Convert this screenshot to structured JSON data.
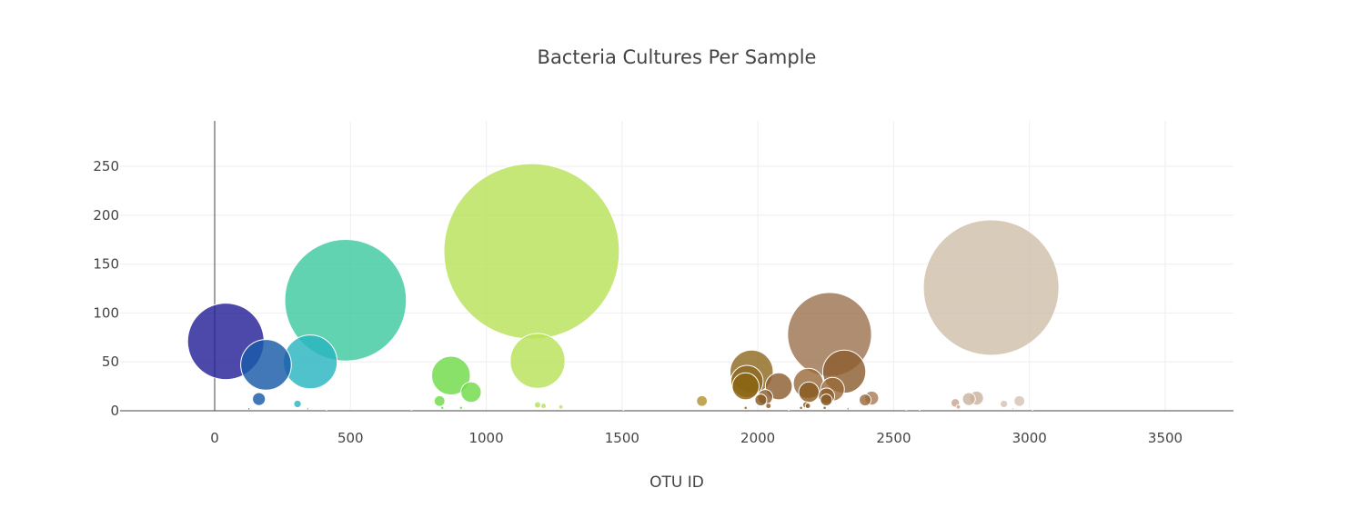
{
  "chart_data": {
    "type": "scatter",
    "title": "Bacteria Cultures Per Sample",
    "xlabel": "OTU ID",
    "ylabel": "",
    "xlim": [
      -350,
      3750
    ],
    "ylim": [
      -5,
      297
    ],
    "x_ticks": [
      0,
      500,
      1000,
      1500,
      2000,
      2500,
      3000,
      3500
    ],
    "y_ticks": [
      0,
      50,
      100,
      150,
      200,
      250
    ],
    "grid": true,
    "legend": "none",
    "points": [
      {
        "x": 1167,
        "y": 163,
        "size": 163,
        "color": "#b8e259"
      },
      {
        "x": 2859,
        "y": 126,
        "size": 126,
        "color": "#cfbfab"
      },
      {
        "x": 482,
        "y": 113,
        "size": 113,
        "color": "#3ec9a0"
      },
      {
        "x": 2264,
        "y": 78,
        "size": 78,
        "color": "#9e7452"
      },
      {
        "x": 41,
        "y": 71,
        "size": 71,
        "color": "#262199"
      },
      {
        "x": 1189,
        "y": 51,
        "size": 51,
        "color": "#b8e259"
      },
      {
        "x": 352,
        "y": 50,
        "size": 50,
        "color": "#29b5c0"
      },
      {
        "x": 189,
        "y": 47,
        "size": 47,
        "color": "#1a5aa8"
      },
      {
        "x": 1977,
        "y": 40,
        "size": 40,
        "color": "#8f6a22"
      },
      {
        "x": 2318,
        "y": 40,
        "size": 40,
        "color": "#8c5e30"
      },
      {
        "x": 870,
        "y": 36,
        "size": 36,
        "color": "#70db48"
      },
      {
        "x": 1960,
        "y": 30,
        "size": 30,
        "color": "#8f6a22"
      },
      {
        "x": 2186,
        "y": 28,
        "size": 28,
        "color": "#9a6b3c"
      },
      {
        "x": 1955,
        "y": 25,
        "size": 25,
        "color": "#8a6410"
      },
      {
        "x": 2077,
        "y": 25,
        "size": 25,
        "color": "#8c5e30"
      },
      {
        "x": 2275,
        "y": 22,
        "size": 22,
        "color": "#9a6b3c"
      },
      {
        "x": 944,
        "y": 19,
        "size": 19,
        "color": "#70db48"
      },
      {
        "x": 2188,
        "y": 19,
        "size": 19,
        "color": "#8a5a20"
      },
      {
        "x": 2253,
        "y": 15,
        "size": 15,
        "color": "#8c5e30"
      },
      {
        "x": 2027,
        "y": 14,
        "size": 14,
        "color": "#8c5e30"
      },
      {
        "x": 2419,
        "y": 13,
        "size": 13,
        "color": "#a87d5a"
      },
      {
        "x": 2805,
        "y": 13,
        "size": 13,
        "color": "#cbb29e"
      },
      {
        "x": 163,
        "y": 12,
        "size": 12,
        "color": "#1a5aa8"
      },
      {
        "x": 2395,
        "y": 11,
        "size": 11,
        "color": "#9a6b3c"
      },
      {
        "x": 2252,
        "y": 11,
        "size": 11,
        "color": "#8a5a20"
      },
      {
        "x": 2777,
        "y": 12,
        "size": 12,
        "color": "#cbb29e"
      },
      {
        "x": 2011,
        "y": 11,
        "size": 11,
        "color": "#8a5a20"
      },
      {
        "x": 1794,
        "y": 10,
        "size": 10,
        "color": "#b39330"
      },
      {
        "x": 2963,
        "y": 10,
        "size": 10,
        "color": "#d6c2b5"
      },
      {
        "x": 828,
        "y": 10,
        "size": 10,
        "color": "#70db48"
      },
      {
        "x": 2727,
        "y": 8,
        "size": 8,
        "color": "#c4a694"
      },
      {
        "x": 2906,
        "y": 7,
        "size": 7,
        "color": "#d6c2b5"
      },
      {
        "x": 305,
        "y": 7,
        "size": 7,
        "color": "#29b5c0"
      },
      {
        "x": 2177,
        "y": 6,
        "size": 6,
        "color": "#8a5a20"
      },
      {
        "x": 2184,
        "y": 5,
        "size": 5,
        "color": "#8a5a20"
      },
      {
        "x": 1189,
        "y": 6,
        "size": 6,
        "color": "#b8e259"
      },
      {
        "x": 1211,
        "y": 5,
        "size": 5,
        "color": "#b8e259"
      },
      {
        "x": 2039,
        "y": 5,
        "size": 5,
        "color": "#8a5a20"
      },
      {
        "x": 2738,
        "y": 4,
        "size": 4,
        "color": "#c4a694"
      },
      {
        "x": 1275,
        "y": 4,
        "size": 4,
        "color": "#b8e259"
      },
      {
        "x": 907,
        "y": 3,
        "size": 3,
        "color": "#70db48"
      },
      {
        "x": 838,
        "y": 3,
        "size": 3,
        "color": "#70db48"
      },
      {
        "x": 1955,
        "y": 3,
        "size": 3,
        "color": "#8a6410"
      },
      {
        "x": 2159,
        "y": 3,
        "size": 3,
        "color": "#8a5a20"
      },
      {
        "x": 2246,
        "y": 3,
        "size": 3,
        "color": "#8a5a20"
      },
      {
        "x": 2332,
        "y": 2,
        "size": 2,
        "color": "#8c5e30"
      },
      {
        "x": 2939,
        "y": 2,
        "size": 2,
        "color": "#d6c2b5"
      },
      {
        "x": 126,
        "y": 2,
        "size": 2,
        "color": "#1a5aa8"
      },
      {
        "x": 343,
        "y": 2,
        "size": 2,
        "color": "#29b5c0"
      },
      {
        "x": 412,
        "y": 1,
        "size": 1,
        "color": "#3ec9a0"
      },
      {
        "x": 725,
        "y": 1,
        "size": 1,
        "color": "#70db48"
      },
      {
        "x": 1505,
        "y": 1,
        "size": 1,
        "color": "#c8d050"
      },
      {
        "x": 2114,
        "y": 1,
        "size": 1,
        "color": "#8a5a20"
      },
      {
        "x": 2547,
        "y": 1,
        "size": 1,
        "color": "#b39080"
      },
      {
        "x": 2596,
        "y": 1,
        "size": 1,
        "color": "#b39080"
      },
      {
        "x": 3012,
        "y": 1,
        "size": 1,
        "color": "#d6c2b5"
      }
    ]
  }
}
